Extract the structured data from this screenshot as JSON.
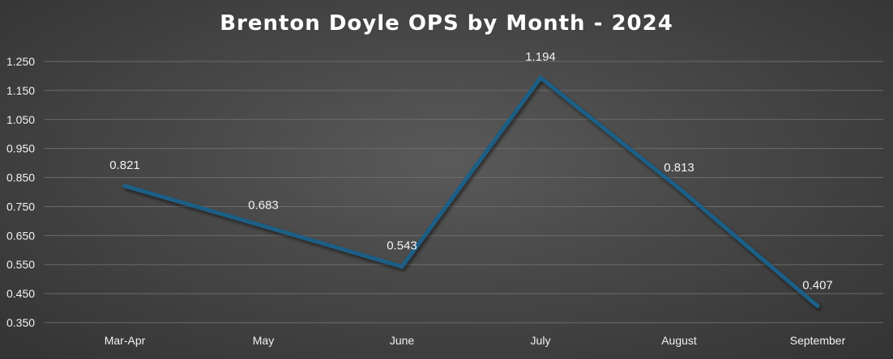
{
  "chart_data": {
    "type": "line",
    "title": "Brenton Doyle OPS by Month - 2024",
    "xlabel": "",
    "ylabel": "",
    "categories": [
      "Mar-Apr",
      "May",
      "June",
      "July",
      "August",
      "September"
    ],
    "series": [
      {
        "values": [
          0.821,
          0.683,
          0.543,
          1.194,
          0.813,
          0.407
        ],
        "color": "#1f5f86"
      }
    ],
    "data_labels": [
      "0.821",
      "0.683",
      "0.543",
      "1.194",
      "0.813",
      "0.407"
    ],
    "ylim": [
      0.35,
      1.25
    ],
    "yticks": [
      0.35,
      0.45,
      0.55,
      0.65,
      0.75,
      0.85,
      0.95,
      1.05,
      1.15,
      1.25
    ],
    "ytick_labels": [
      "0.350",
      "0.450",
      "0.550",
      "0.650",
      "0.750",
      "0.850",
      "0.950",
      "1.050",
      "1.150",
      "1.250"
    ],
    "grid": true,
    "legend": "none",
    "colors": {
      "line": "#1f5f86",
      "text": "#f2f2f2",
      "grid": "#6c6c6c",
      "background": "#474747"
    }
  }
}
